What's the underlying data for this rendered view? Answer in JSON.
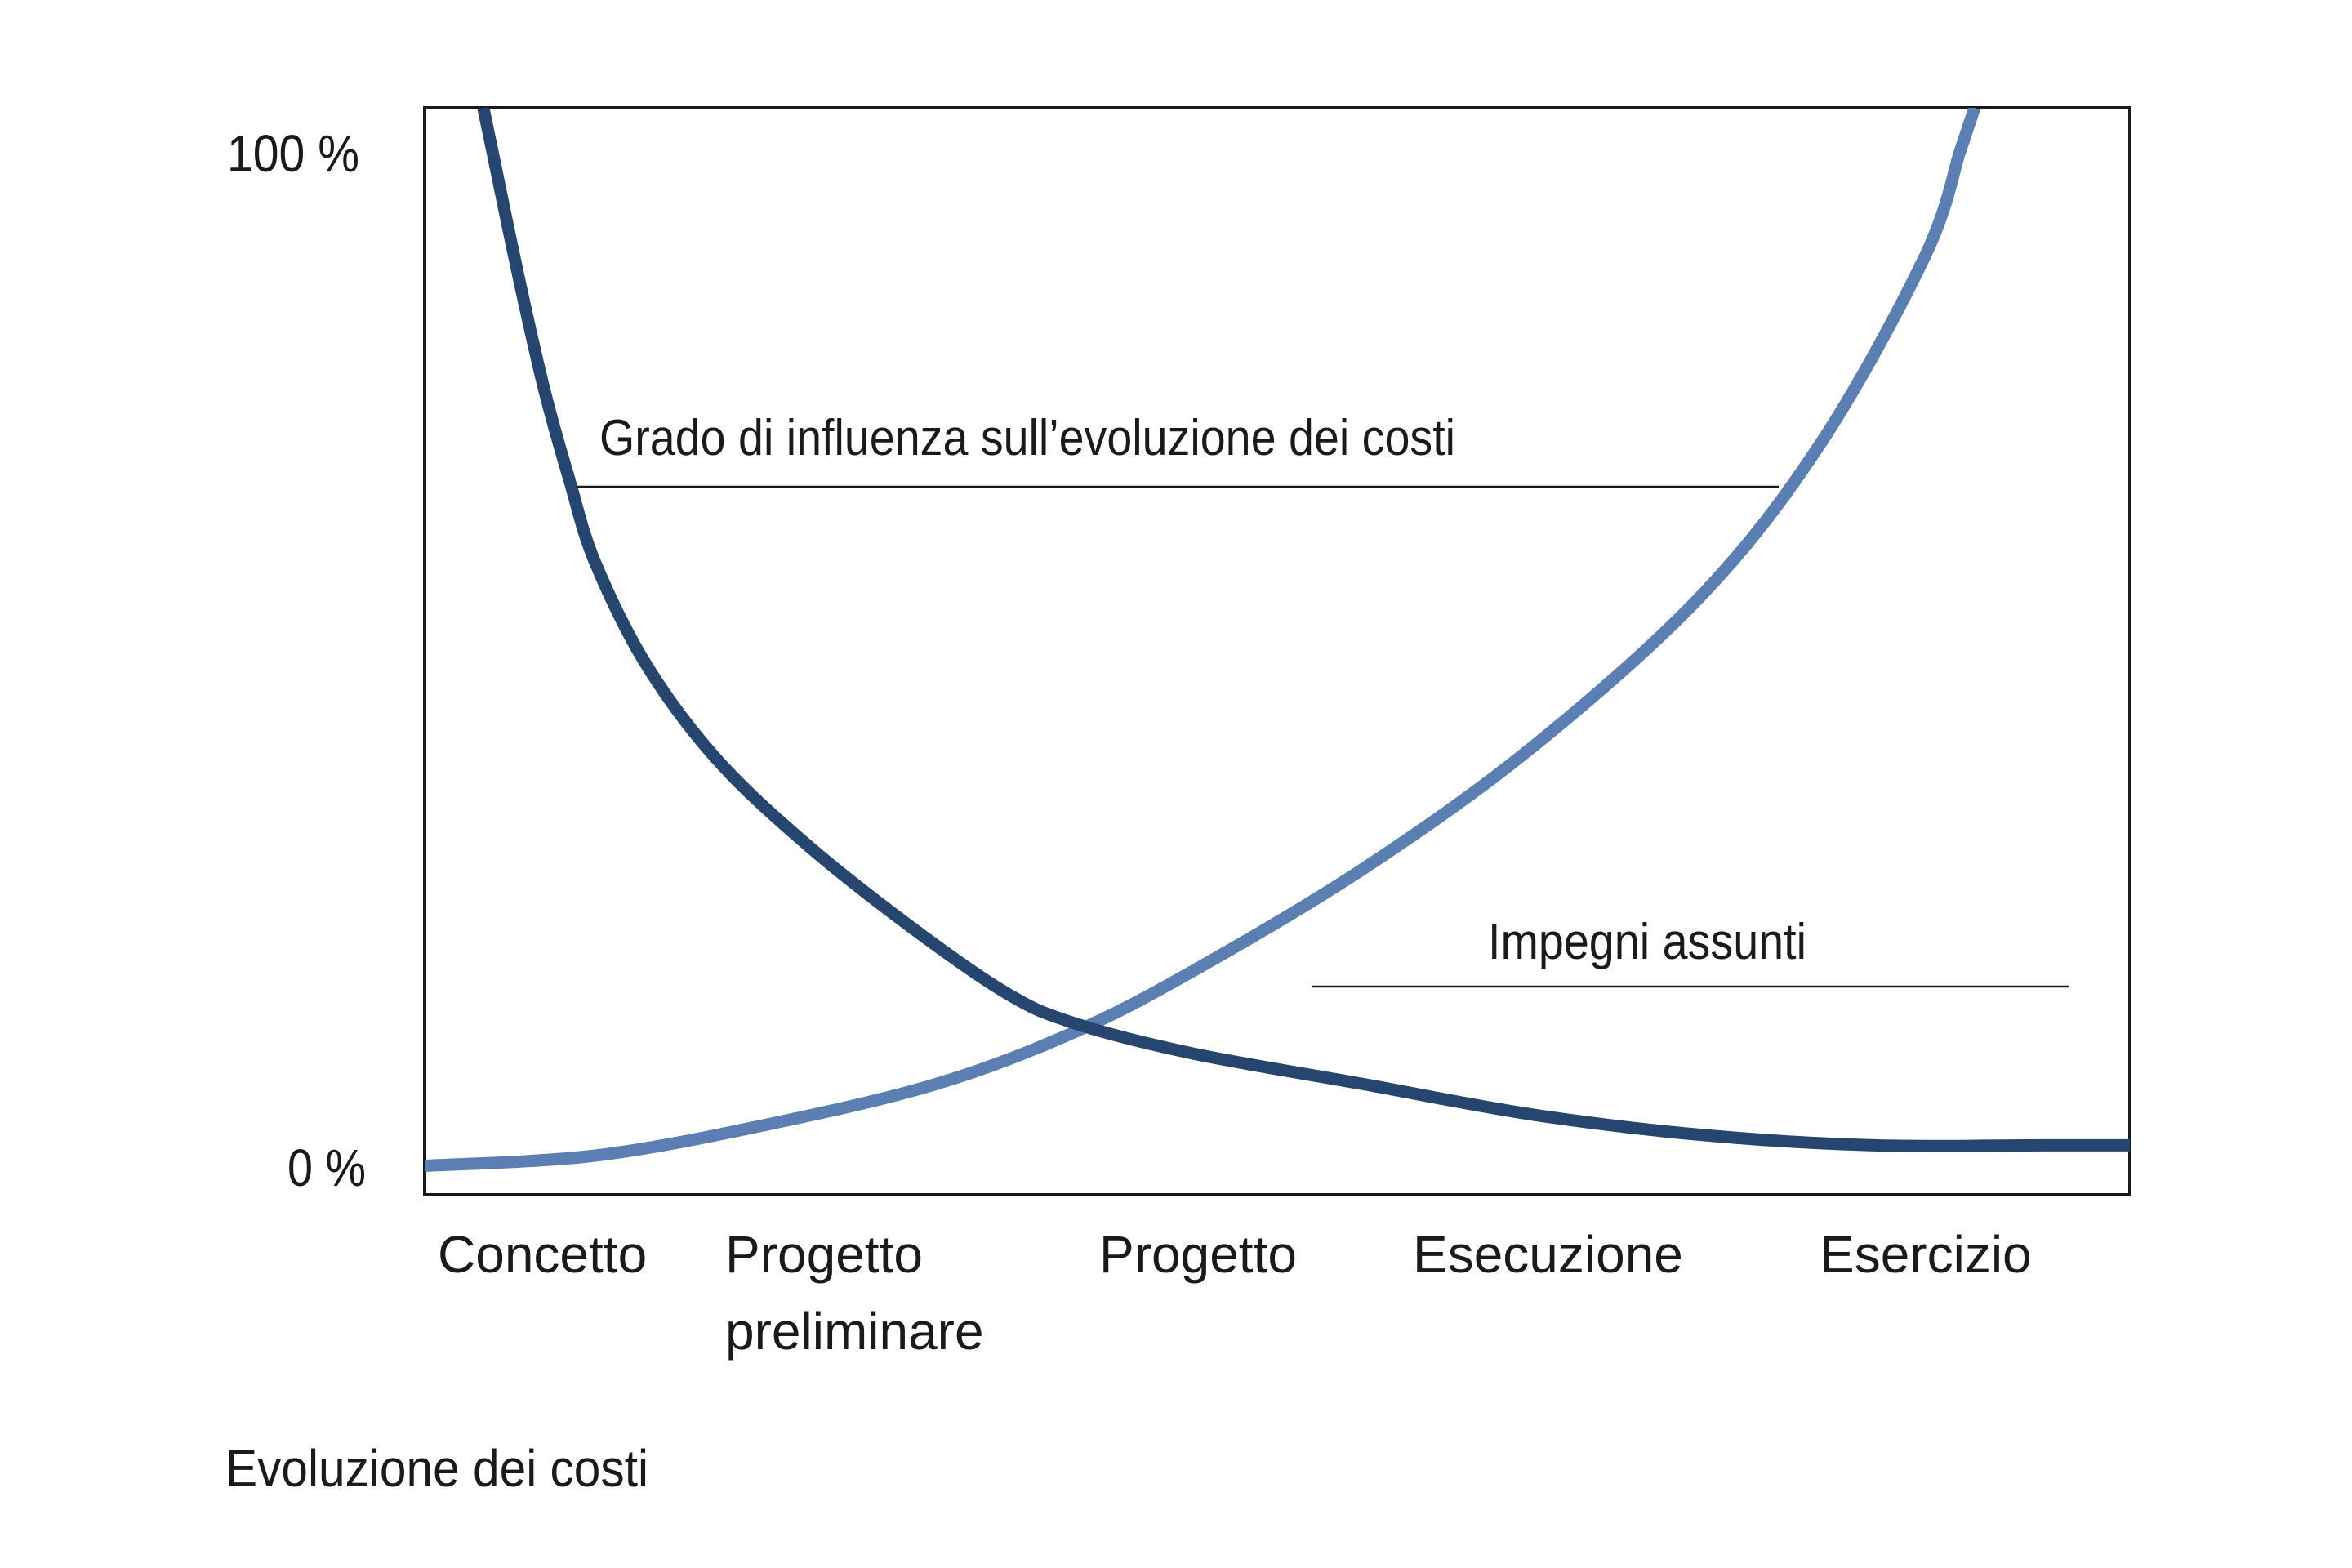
{
  "chart_data": {
    "type": "line",
    "categories": [
      "Concetto",
      "Progetto\npreliminare",
      "Progetto",
      "Esecuzione",
      "Esercizio"
    ],
    "x_range": [
      0,
      1
    ],
    "ylim": [
      0,
      100
    ],
    "y_ticks": [
      "100 %",
      "0 %"
    ],
    "caption": "Evoluzione dei costi",
    "grid": false,
    "series": [
      {
        "name": "Grado di influenza sull’evoluzione dei costi",
        "color": "#27466f",
        "x": [
          0.04,
          0.055,
          0.07,
          0.085,
          0.1,
          0.13,
          0.17,
          0.22,
          0.28,
          0.34,
          0.38,
          0.45,
          0.55,
          0.65,
          0.75,
          0.85,
          0.95,
          1.0
        ],
        "y": [
          100,
          88,
          77,
          68,
          60,
          50,
          41,
          33,
          25,
          18,
          15,
          12,
          9,
          6,
          4,
          3,
          3,
          3
        ]
      },
      {
        "name": "Impegni assunti",
        "color": "#5b7fb3",
        "x": [
          0.0,
          0.1,
          0.2,
          0.3,
          0.38,
          0.45,
          0.55,
          0.65,
          0.75,
          0.82,
          0.88,
          0.9
        ],
        "y": [
          1,
          2,
          5,
          9,
          14,
          20,
          30,
          42,
          57,
          72,
          90,
          100
        ]
      }
    ]
  }
}
